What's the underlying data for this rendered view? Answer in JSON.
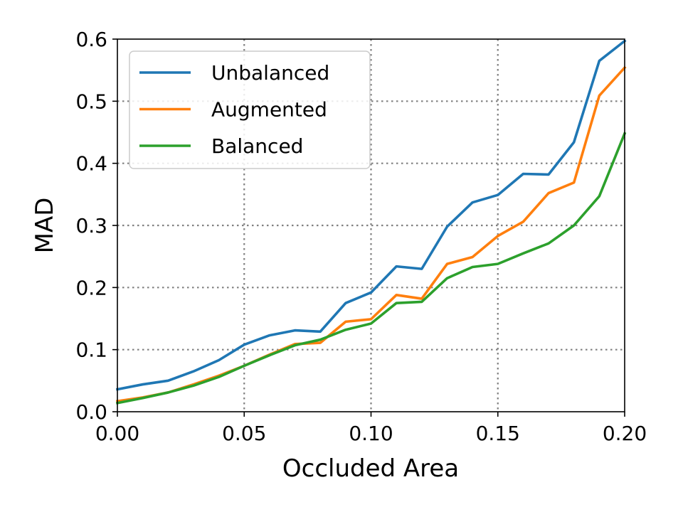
{
  "chart_data": {
    "type": "line",
    "title": "",
    "xlabel": "Occluded Area",
    "ylabel": "MAD",
    "xlim": [
      0,
      0.2
    ],
    "ylim": [
      0,
      0.6
    ],
    "xticks": [
      0,
      0.05,
      0.1,
      0.15,
      0.2
    ],
    "xtick_labels": [
      "0.00",
      "0.05",
      "0.10",
      "0.15",
      "0.20"
    ],
    "yticks": [
      0,
      0.1,
      0.2,
      0.3,
      0.4,
      0.5,
      0.6
    ],
    "ytick_labels": [
      "0.0",
      "0.1",
      "0.2",
      "0.3",
      "0.4",
      "0.5",
      "0.6"
    ],
    "grid": true,
    "legend_position": "top-left",
    "x": [
      0,
      0.01,
      0.02,
      0.03,
      0.04,
      0.05,
      0.06,
      0.07,
      0.08,
      0.09,
      0.1,
      0.11,
      0.12,
      0.13,
      0.14,
      0.15,
      0.16,
      0.17,
      0.18,
      0.19,
      0.2
    ],
    "series": [
      {
        "name": "Unbalanced",
        "color": "#1f77b4",
        "values": [
          0.036,
          0.044,
          0.05,
          0.065,
          0.083,
          0.108,
          0.123,
          0.131,
          0.129,
          0.175,
          0.192,
          0.234,
          0.23,
          0.298,
          0.337,
          0.349,
          0.383,
          0.382,
          0.434,
          0.565,
          0.597
        ]
      },
      {
        "name": "Augmented",
        "color": "#ff7f0e",
        "values": [
          0.017,
          0.023,
          0.031,
          0.044,
          0.058,
          0.074,
          0.092,
          0.109,
          0.111,
          0.145,
          0.149,
          0.188,
          0.182,
          0.238,
          0.249,
          0.283,
          0.306,
          0.352,
          0.369,
          0.509,
          0.554
        ]
      },
      {
        "name": "Balanced",
        "color": "#2ca02c",
        "values": [
          0.014,
          0.022,
          0.031,
          0.042,
          0.056,
          0.074,
          0.091,
          0.107,
          0.116,
          0.132,
          0.142,
          0.175,
          0.177,
          0.215,
          0.233,
          0.238,
          0.255,
          0.271,
          0.3,
          0.347,
          0.448
        ]
      }
    ]
  }
}
